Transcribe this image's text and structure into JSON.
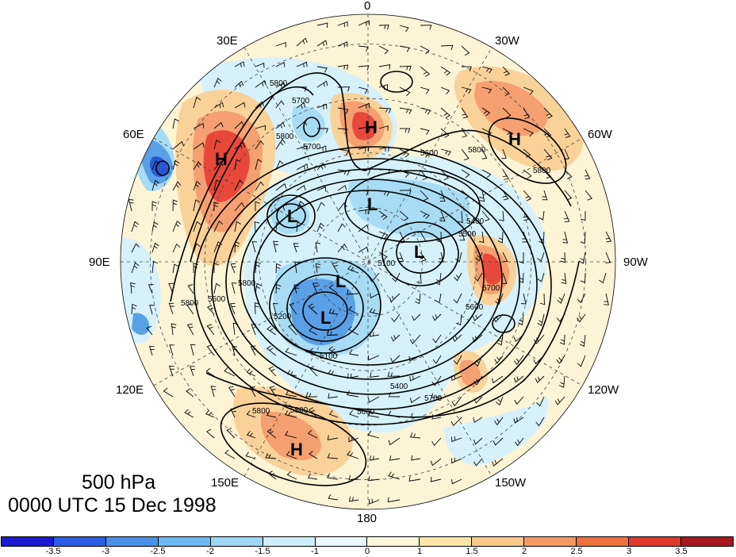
{
  "level": "500 hPa",
  "valid_time": "0000 UTC 15 Dec 1998",
  "longitude_labels": {
    "lon_0": "0",
    "lon_30w": "30W",
    "lon_60w": "60W",
    "lon_90w": "90W",
    "lon_120w": "120W",
    "lon_150w": "150W",
    "lon_180": "180",
    "lon_150e": "150E",
    "lon_120e": "120E",
    "lon_90e": "90E",
    "lon_60e": "60E",
    "lon_30e": "30E"
  },
  "contour_labels": [
    "5800",
    "5700",
    "5800",
    "5600",
    "5800",
    "5700",
    "5800",
    "5500",
    "5400",
    "5100",
    "5200",
    "5700",
    "5600",
    "5800",
    "5100",
    "5400",
    "5600",
    "5800",
    "5700",
    "5800",
    "5500",
    "5800"
  ],
  "pressure_centers": [
    "H",
    "H",
    "H",
    "H",
    "L",
    "L",
    "L",
    "L",
    "L"
  ],
  "colorbar": {
    "ticks": [
      "-3.5",
      "-3",
      "-2.5",
      "-2",
      "-1.5",
      "-1",
      "0",
      "1",
      "1.5",
      "2",
      "2.5",
      "3",
      "3.5"
    ],
    "colors": [
      "#1a1ad0",
      "#2b5ce6",
      "#4a90e8",
      "#6cb8f2",
      "#9ed6f5",
      "#cfeefb",
      "#eaf8fd",
      "#fdf7dc",
      "#fbe6a8",
      "#f9c98a",
      "#f59865",
      "#f0703f",
      "#de3a2e",
      "#a8171c"
    ]
  },
  "map_colors": {
    "background": "#fdf4d6",
    "positive_weak": "#f9d29a",
    "positive_mid": "#f4a070",
    "positive_strong": "#e8483a",
    "negative_weak": "#d6f1fa",
    "negative_mid": "#a8dcf4",
    "negative_strong": "#5aa0e6",
    "negative_deep": "#2a56d4"
  }
}
